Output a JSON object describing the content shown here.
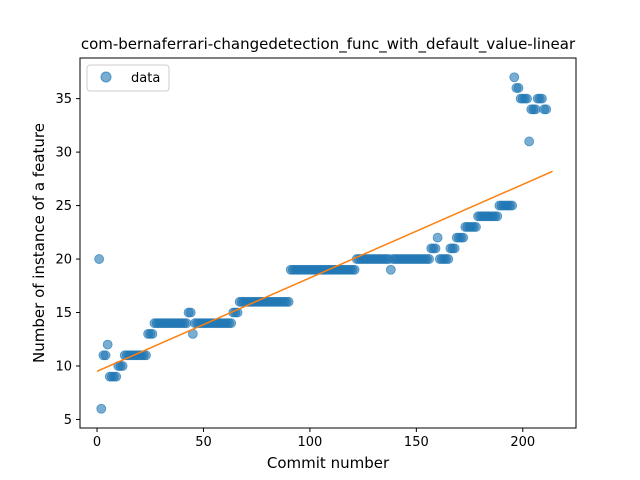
{
  "chart_data": {
    "type": "scatter",
    "title": "com-bernaferrari-changedetection_func_with_default_value-linear",
    "xlabel": "Commit number",
    "ylabel": "Number of instance of a feature",
    "xlim": [
      -8,
      225
    ],
    "ylim": [
      4.2,
      38.8
    ],
    "xticks": [
      0,
      50,
      100,
      150,
      200
    ],
    "yticks": [
      5,
      10,
      15,
      20,
      25,
      30,
      35
    ],
    "legend": {
      "location": "upper-left",
      "entries": [
        "data"
      ]
    },
    "colors": {
      "points": "#1f77b4",
      "fit": "#ff7f0e"
    },
    "series": [
      {
        "name": "data",
        "kind": "scatter",
        "points": [
          [
            1,
            20
          ],
          [
            2,
            6
          ],
          [
            3,
            11
          ],
          [
            4,
            11
          ],
          [
            5,
            12
          ],
          [
            6,
            9
          ],
          [
            7,
            9
          ],
          [
            8,
            9
          ],
          [
            9,
            9
          ],
          [
            10,
            10
          ],
          [
            11,
            10
          ],
          [
            12,
            10
          ],
          [
            13,
            11
          ],
          [
            14,
            11
          ],
          [
            15,
            11
          ],
          [
            16,
            11
          ],
          [
            17,
            11
          ],
          [
            18,
            11
          ],
          [
            19,
            11
          ],
          [
            20,
            11
          ],
          [
            21,
            11
          ],
          [
            22,
            11
          ],
          [
            23,
            11
          ],
          [
            24,
            13
          ],
          [
            25,
            13
          ],
          [
            26,
            13
          ],
          [
            27,
            14
          ],
          [
            28,
            14
          ],
          [
            29,
            14
          ],
          [
            30,
            14
          ],
          [
            31,
            14
          ],
          [
            32,
            14
          ],
          [
            33,
            14
          ],
          [
            34,
            14
          ],
          [
            35,
            14
          ],
          [
            36,
            14
          ],
          [
            37,
            14
          ],
          [
            38,
            14
          ],
          [
            39,
            14
          ],
          [
            40,
            14
          ],
          [
            41,
            14
          ],
          [
            42,
            14
          ],
          [
            43,
            15
          ],
          [
            44,
            15
          ],
          [
            45,
            13
          ],
          [
            46,
            14
          ],
          [
            47,
            14
          ],
          [
            48,
            14
          ],
          [
            49,
            14
          ],
          [
            50,
            14
          ],
          [
            51,
            14
          ],
          [
            52,
            14
          ],
          [
            53,
            14
          ],
          [
            54,
            14
          ],
          [
            55,
            14
          ],
          [
            56,
            14
          ],
          [
            57,
            14
          ],
          [
            58,
            14
          ],
          [
            59,
            14
          ],
          [
            60,
            14
          ],
          [
            61,
            14
          ],
          [
            62,
            14
          ],
          [
            63,
            14
          ],
          [
            64,
            15
          ],
          [
            65,
            15
          ],
          [
            66,
            15
          ],
          [
            67,
            16
          ],
          [
            68,
            16
          ],
          [
            69,
            16
          ],
          [
            70,
            16
          ],
          [
            71,
            16
          ],
          [
            72,
            16
          ],
          [
            73,
            16
          ],
          [
            74,
            16
          ],
          [
            75,
            16
          ],
          [
            76,
            16
          ],
          [
            77,
            16
          ],
          [
            78,
            16
          ],
          [
            79,
            16
          ],
          [
            80,
            16
          ],
          [
            81,
            16
          ],
          [
            82,
            16
          ],
          [
            83,
            16
          ],
          [
            84,
            16
          ],
          [
            85,
            16
          ],
          [
            86,
            16
          ],
          [
            87,
            16
          ],
          [
            88,
            16
          ],
          [
            89,
            16
          ],
          [
            90,
            16
          ],
          [
            91,
            19
          ],
          [
            92,
            19
          ],
          [
            93,
            19
          ],
          [
            94,
            19
          ],
          [
            95,
            19
          ],
          [
            96,
            19
          ],
          [
            97,
            19
          ],
          [
            98,
            19
          ],
          [
            99,
            19
          ],
          [
            100,
            19
          ],
          [
            101,
            19
          ],
          [
            102,
            19
          ],
          [
            103,
            19
          ],
          [
            104,
            19
          ],
          [
            105,
            19
          ],
          [
            106,
            19
          ],
          [
            107,
            19
          ],
          [
            108,
            19
          ],
          [
            109,
            19
          ],
          [
            110,
            19
          ],
          [
            111,
            19
          ],
          [
            112,
            19
          ],
          [
            113,
            19
          ],
          [
            114,
            19
          ],
          [
            115,
            19
          ],
          [
            116,
            19
          ],
          [
            117,
            19
          ],
          [
            118,
            19
          ],
          [
            119,
            19
          ],
          [
            120,
            19
          ],
          [
            121,
            19
          ],
          [
            122,
            20
          ],
          [
            123,
            20
          ],
          [
            124,
            20
          ],
          [
            125,
            20
          ],
          [
            126,
            20
          ],
          [
            127,
            20
          ],
          [
            128,
            20
          ],
          [
            129,
            20
          ],
          [
            130,
            20
          ],
          [
            131,
            20
          ],
          [
            132,
            20
          ],
          [
            133,
            20
          ],
          [
            134,
            20
          ],
          [
            135,
            20
          ],
          [
            136,
            20
          ],
          [
            137,
            20
          ],
          [
            138,
            19
          ],
          [
            139,
            20
          ],
          [
            140,
            20
          ],
          [
            141,
            20
          ],
          [
            142,
            20
          ],
          [
            143,
            20
          ],
          [
            144,
            20
          ],
          [
            145,
            20
          ],
          [
            146,
            20
          ],
          [
            147,
            20
          ],
          [
            148,
            20
          ],
          [
            149,
            20
          ],
          [
            150,
            20
          ],
          [
            151,
            20
          ],
          [
            152,
            20
          ],
          [
            153,
            20
          ],
          [
            154,
            20
          ],
          [
            155,
            20
          ],
          [
            156,
            20
          ],
          [
            157,
            21
          ],
          [
            158,
            21
          ],
          [
            159,
            21
          ],
          [
            160,
            22
          ],
          [
            161,
            20
          ],
          [
            162,
            20
          ],
          [
            163,
            20
          ],
          [
            164,
            20
          ],
          [
            165,
            20
          ],
          [
            166,
            21
          ],
          [
            167,
            21
          ],
          [
            168,
            21
          ],
          [
            169,
            22
          ],
          [
            170,
            22
          ],
          [
            171,
            22
          ],
          [
            172,
            22
          ],
          [
            173,
            23
          ],
          [
            174,
            23
          ],
          [
            175,
            23
          ],
          [
            176,
            23
          ],
          [
            177,
            23
          ],
          [
            178,
            23
          ],
          [
            179,
            24
          ],
          [
            180,
            24
          ],
          [
            181,
            24
          ],
          [
            182,
            24
          ],
          [
            183,
            24
          ],
          [
            184,
            24
          ],
          [
            185,
            24
          ],
          [
            186,
            24
          ],
          [
            187,
            24
          ],
          [
            188,
            24
          ],
          [
            189,
            25
          ],
          [
            190,
            25
          ],
          [
            191,
            25
          ],
          [
            192,
            25
          ],
          [
            193,
            25
          ],
          [
            194,
            25
          ],
          [
            195,
            25
          ],
          [
            196,
            37
          ],
          [
            197,
            36
          ],
          [
            198,
            36
          ],
          [
            199,
            35
          ],
          [
            200,
            35
          ],
          [
            201,
            35
          ],
          [
            202,
            35
          ],
          [
            203,
            31
          ],
          [
            204,
            34
          ],
          [
            205,
            34
          ],
          [
            206,
            34
          ],
          [
            207,
            35
          ],
          [
            208,
            35
          ],
          [
            209,
            35
          ],
          [
            210,
            34
          ],
          [
            211,
            34
          ]
        ]
      },
      {
        "kind": "line",
        "points": [
          [
            0,
            9.5
          ],
          [
            214,
            28.2
          ]
        ]
      }
    ]
  }
}
